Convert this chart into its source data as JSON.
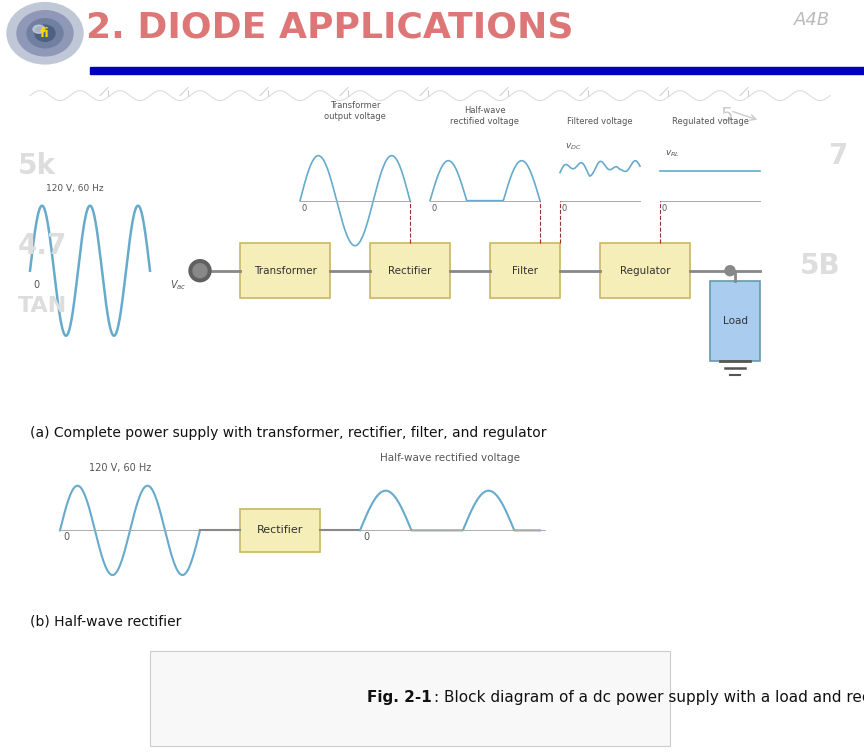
{
  "title": "2. DIODE APPLICATIONS",
  "title_color": "#DD7777",
  "bg_color": "#FFFFFF",
  "header_bar_color": "#0000BB",
  "subtitle_a": "(a) Complete power supply with transformer, rectifier, filter, and regulator",
  "subtitle_b": "(b) Half-wave rectifier",
  "fig_caption_bold": "Fig. 2-1",
  "fig_caption_rest": ": Block diagram of a dc power supply with a load and rectifier.",
  "block_fill": "#F5EEB8",
  "block_edge": "#C8B860",
  "block_labels": [
    "Transformer",
    "Rectifier",
    "Filter",
    "Regulator"
  ],
  "load_label": "Load",
  "signal_color": "#66AACC",
  "wire_color": "#888888",
  "sine_label": "120 V, 60 Hz",
  "wf_label_0": "Transformer\noutput voltage",
  "wf_label_1": "Half-wave\nrectified voltage",
  "wf_label_2": "Filtered voltage",
  "wf_label_3": "Regulated voltage",
  "watermark_color": "#CCCCCC",
  "a4b_color": "#BBBBBB",
  "label_color": "#555555",
  "dashed_color": "#993333"
}
